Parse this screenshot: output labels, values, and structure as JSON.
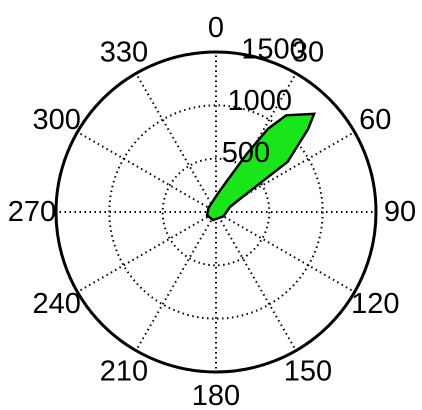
{
  "chart_data": {
    "type": "polar-area",
    "angle_unit": "degrees",
    "angle_direction": "clockwise",
    "angle_zero": "top",
    "rlim": [
      0,
      1500
    ],
    "r_ticks": [
      500,
      1000,
      1500
    ],
    "r_tick_labels": [
      "500",
      "1000",
      "1500"
    ],
    "theta_ticks": [
      0,
      30,
      60,
      90,
      120,
      150,
      180,
      210,
      240,
      270,
      300,
      330
    ],
    "theta_tick_labels": [
      "0",
      "30",
      "60",
      "90",
      "120",
      "150",
      "180",
      "210",
      "240",
      "270",
      "300",
      "330"
    ],
    "grid": true,
    "fill_color": "#19e619",
    "edge_color": "#000000",
    "points": [
      {
        "theta": 45,
        "r": 1300
      },
      {
        "theta": 48,
        "r": 1160
      },
      {
        "theta": 55,
        "r": 820
      },
      {
        "theta": 60,
        "r": 300
      },
      {
        "theta": 70,
        "r": 140
      },
      {
        "theta": 120,
        "r": 80
      },
      {
        "theta": 200,
        "r": 80
      },
      {
        "theta": 250,
        "r": 90
      },
      {
        "theta": 300,
        "r": 80
      },
      {
        "theta": 5,
        "r": 170
      },
      {
        "theta": 20,
        "r": 320
      },
      {
        "theta": 28,
        "r": 620
      },
      {
        "theta": 32,
        "r": 920
      },
      {
        "theta": 36,
        "r": 1120
      }
    ]
  }
}
